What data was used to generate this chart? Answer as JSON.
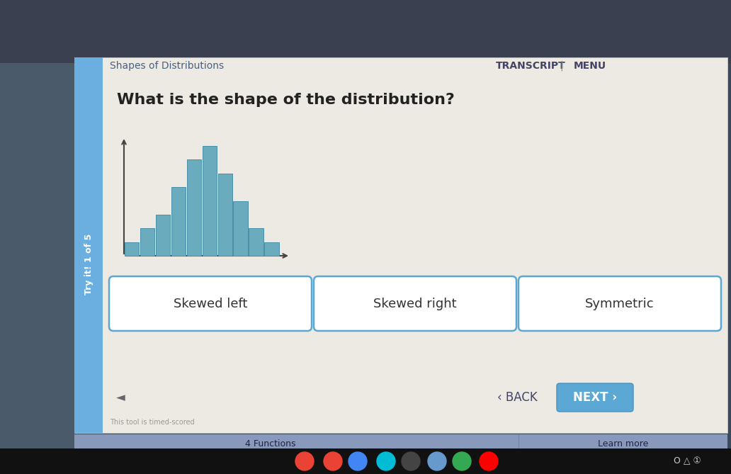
{
  "title": "What is the shape of the distribution?",
  "header_left": "Shapes of Distributions",
  "header_right_transcript": "TRANSCRIPT",
  "header_right_menu": "MENU",
  "sidebar_text": "Try it! 1 of 5",
  "sidebar_color": "#6aafe0",
  "bg_outer": "#6a7fa0",
  "bg_content": "#f0eeeb",
  "histogram_bar_heights": [
    1,
    2,
    3,
    5,
    7,
    8,
    6,
    4,
    2,
    1
  ],
  "histogram_bar_color": "#6aacbe",
  "histogram_bar_edge_color": "#4a8fa8",
  "buttons": [
    "Skewed left",
    "Skewed right",
    "Symmetric"
  ],
  "button_border_color": "#5ba8d4",
  "button_text_color": "#333333",
  "button_bg": "#ffffff",
  "back_text": "‹ BACK",
  "next_text": "NEXT ›",
  "next_bg": "#5ba8d4",
  "next_text_color": "#ffffff",
  "back_text_color": "#444466",
  "bottom_bar_color": "#8899bb",
  "bottom_bar_text": "4 Functions",
  "bottom_bar_right": "Learn more",
  "taskbar_color": "#111111",
  "note_text": "This tool is timed-scored",
  "header_text_color": "#4a6080",
  "transcript_color": "#444466",
  "axis_color": "#444444",
  "left_dark_bg": "#4a6070",
  "top_dark_bg": "#333344"
}
